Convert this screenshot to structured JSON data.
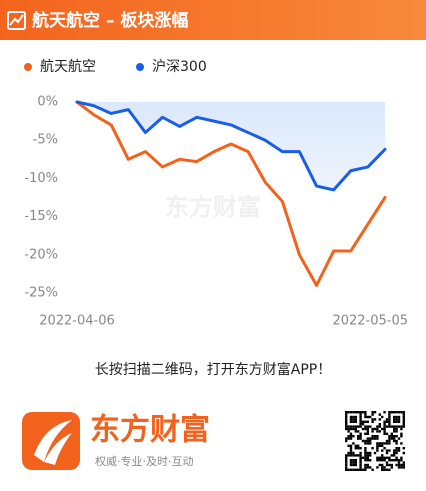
{
  "header": {
    "title": "航天航空 – 板块涨幅"
  },
  "chart_data": {
    "type": "line",
    "categories": [
      "2022-04-06",
      null,
      null,
      null,
      null,
      null,
      null,
      null,
      null,
      null,
      null,
      null,
      null,
      null,
      null,
      null,
      null,
      null,
      "2022-05-05"
    ],
    "series": [
      {
        "name": "航天航空",
        "color": "#f2621c",
        "values": [
          0,
          -1.7,
          -3,
          -7.5,
          -6.5,
          -8.5,
          -7.5,
          -7.8,
          -6.5,
          -5.5,
          -6.5,
          -10.5,
          -13,
          -20,
          -24,
          -19.5,
          -19.5,
          -16,
          -12.5
        ]
      },
      {
        "name": "沪深300",
        "color": "#1a5ee8",
        "values": [
          0,
          -0.5,
          -1.5,
          -1,
          -4,
          -2,
          -3.2,
          -2,
          -2.5,
          -3,
          -4,
          -5,
          -6.5,
          -6.5,
          -11,
          -11.5,
          -9,
          -8.5,
          -6.2
        ]
      }
    ],
    "ylim": [
      -25,
      0
    ],
    "yticks": [
      {
        "value": 0,
        "label": "0%"
      },
      {
        "value": -5,
        "label": "-5%"
      },
      {
        "value": -10,
        "label": "-10%"
      },
      {
        "value": -15,
        "label": "-15%"
      },
      {
        "value": -20,
        "label": "-20%"
      },
      {
        "value": -25,
        "label": "-25%"
      }
    ],
    "watermark": "东方财富"
  },
  "footer": {
    "prompt": "长按扫描二维码，打开东方财富APP！",
    "brand": "东方财富",
    "slogan": "权威·专业·及时·互动"
  }
}
